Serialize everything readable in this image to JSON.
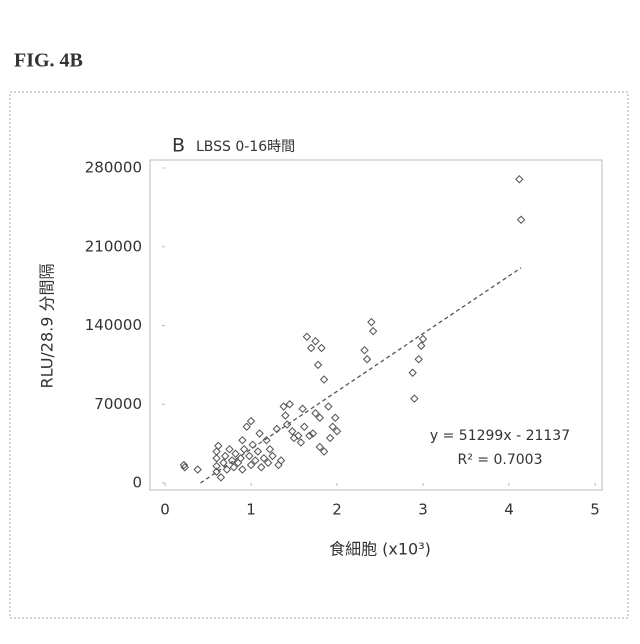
{
  "figure_label": "FIG. 4B",
  "chart_data": {
    "type": "scatter",
    "panel_label": "B",
    "title": "LBSS 0-16時間",
    "ylabel": "RLU/28.9 分間隔",
    "xlabel": "食細胞 (x10³)",
    "xlim": [
      0,
      5
    ],
    "xticks": [
      0,
      1,
      2,
      3,
      4,
      5
    ],
    "ylim": [
      0,
      280000
    ],
    "yticks": [
      0,
      70000,
      140000,
      210000,
      280000
    ],
    "grid": false,
    "series": [
      {
        "color": "#555555",
        "x": [
          0.22,
          0.23,
          0.38,
          0.6,
          0.6,
          0.6,
          0.6,
          0.62,
          0.65,
          0.68,
          0.7,
          0.72,
          0.75,
          0.78,
          0.8,
          0.82,
          0.85,
          0.88,
          0.9,
          0.9,
          0.92,
          0.95,
          0.98,
          1.0,
          1.0,
          1.02,
          1.05,
          1.08,
          1.1,
          1.12,
          1.15,
          1.18,
          1.2,
          1.22,
          1.25,
          1.3,
          1.32,
          1.35,
          1.38,
          1.4,
          1.42,
          1.45,
          1.48,
          1.5,
          1.55,
          1.58,
          1.6,
          1.62,
          1.65,
          1.68,
          1.7,
          1.72,
          1.75,
          1.75,
          1.78,
          1.8,
          1.8,
          1.82,
          1.85,
          1.85,
          1.9,
          1.92,
          1.95,
          1.98,
          2.0,
          2.32,
          2.35,
          2.4,
          2.42,
          2.88,
          2.9,
          2.95,
          2.98,
          3.0,
          4.12,
          4.14
        ],
        "values": [
          16000,
          14000,
          12000,
          10000,
          15000,
          22000,
          28000,
          33000,
          5000,
          18000,
          24000,
          12000,
          30000,
          20000,
          14000,
          26000,
          18000,
          22000,
          12000,
          38000,
          30000,
          50000,
          24000,
          55000,
          16000,
          34000,
          20000,
          28000,
          44000,
          14000,
          22000,
          38000,
          18000,
          30000,
          24000,
          48000,
          16000,
          20000,
          68000,
          60000,
          52000,
          70000,
          46000,
          40000,
          42000,
          36000,
          66000,
          50000,
          130000,
          42000,
          120000,
          44000,
          126000,
          62000,
          105000,
          32000,
          58000,
          120000,
          28000,
          92000,
          68000,
          40000,
          50000,
          58000,
          46000,
          118000,
          110000,
          143000,
          135000,
          98000,
          75000,
          110000,
          122000,
          128000,
          270000,
          234000
        ]
      }
    ],
    "trendline": {
      "slope": 51299,
      "intercept": -21137,
      "label": "y = 51299x - 21137",
      "r2_label": "R² = 0.7003"
    }
  }
}
